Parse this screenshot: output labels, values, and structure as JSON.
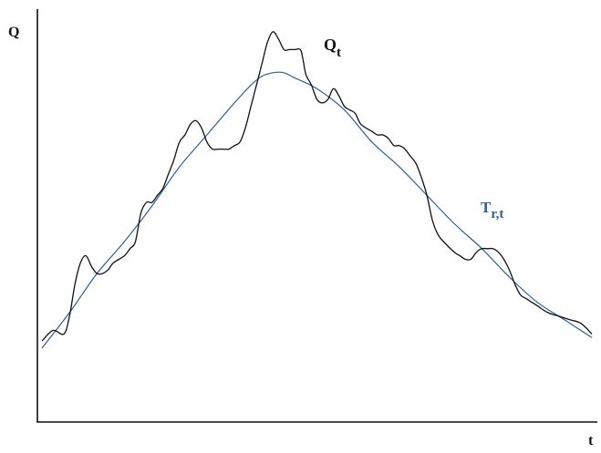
{
  "chart_data": {
    "type": "line",
    "ylabel": "Q",
    "xlabel": "t",
    "grid": false,
    "ticks": false,
    "xlim": [
      0,
      100
    ],
    "ylim": [
      0,
      100
    ],
    "series": [
      {
        "name": "Q",
        "name_sub": "t",
        "color": "#111111",
        "points": [
          [
            0,
            12
          ],
          [
            2,
            15
          ],
          [
            4,
            14
          ],
          [
            5,
            19
          ],
          [
            6,
            28
          ],
          [
            7,
            34
          ],
          [
            8,
            36
          ],
          [
            9,
            33
          ],
          [
            10,
            31
          ],
          [
            11,
            31
          ],
          [
            12,
            32
          ],
          [
            13,
            34
          ],
          [
            15,
            36
          ],
          [
            16,
            38
          ],
          [
            17,
            40
          ],
          [
            18,
            48
          ],
          [
            19,
            51
          ],
          [
            20,
            51
          ],
          [
            21,
            53
          ],
          [
            22,
            55
          ],
          [
            23,
            59
          ],
          [
            24,
            63
          ],
          [
            25,
            68
          ],
          [
            26,
            70
          ],
          [
            27,
            73
          ],
          [
            28,
            74
          ],
          [
            29,
            72
          ],
          [
            30,
            68
          ],
          [
            31,
            66
          ],
          [
            32,
            66
          ],
          [
            33,
            66
          ],
          [
            34,
            66
          ],
          [
            35,
            67
          ],
          [
            36,
            68
          ],
          [
            37,
            72
          ],
          [
            38,
            78
          ],
          [
            39,
            84
          ],
          [
            40,
            90
          ],
          [
            41,
            96
          ],
          [
            42,
            99
          ],
          [
            43,
            97
          ],
          [
            44,
            94
          ],
          [
            45,
            94
          ],
          [
            46,
            94
          ],
          [
            47,
            94
          ],
          [
            47.5,
            91
          ],
          [
            48,
            87
          ],
          [
            49,
            84
          ],
          [
            50,
            80
          ],
          [
            51,
            79
          ],
          [
            52,
            80
          ],
          [
            53,
            83
          ],
          [
            54,
            81
          ],
          [
            55,
            78
          ],
          [
            56,
            77
          ],
          [
            57,
            76
          ],
          [
            58,
            73
          ],
          [
            60,
            71
          ],
          [
            61,
            70
          ],
          [
            62,
            70
          ],
          [
            63,
            69
          ],
          [
            64,
            67
          ],
          [
            65,
            67
          ],
          [
            66,
            66
          ],
          [
            67,
            64
          ],
          [
            68,
            62
          ],
          [
            69,
            58
          ],
          [
            70,
            53
          ],
          [
            71,
            46
          ],
          [
            72,
            42
          ],
          [
            73,
            40
          ],
          [
            75,
            37
          ],
          [
            76,
            36
          ],
          [
            77,
            35
          ],
          [
            78,
            35
          ],
          [
            79,
            37
          ],
          [
            80,
            38
          ],
          [
            81,
            38
          ],
          [
            82,
            38
          ],
          [
            83,
            37
          ],
          [
            84,
            35
          ],
          [
            85,
            32
          ],
          [
            86,
            28
          ],
          [
            87,
            25
          ],
          [
            88,
            24
          ],
          [
            90,
            22
          ],
          [
            92,
            20
          ],
          [
            94,
            19
          ],
          [
            96,
            18
          ],
          [
            98,
            17
          ],
          [
            100,
            14
          ]
        ]
      },
      {
        "name": "T",
        "name_sub": "r,t",
        "color": "#2e5f97",
        "points": [
          [
            0,
            10
          ],
          [
            5,
            20
          ],
          [
            10,
            31
          ],
          [
            15,
            40
          ],
          [
            20,
            50
          ],
          [
            25,
            61
          ],
          [
            30,
            70
          ],
          [
            35,
            79
          ],
          [
            38,
            84
          ],
          [
            40,
            86.5
          ],
          [
            42,
            87.5
          ],
          [
            44,
            87.5
          ],
          [
            46,
            86
          ],
          [
            50,
            83
          ],
          [
            55,
            77
          ],
          [
            60,
            68
          ],
          [
            65,
            61
          ],
          [
            70,
            53
          ],
          [
            75,
            45
          ],
          [
            80,
            38
          ],
          [
            85,
            30
          ],
          [
            90,
            23
          ],
          [
            95,
            18
          ],
          [
            100,
            13
          ]
        ]
      }
    ]
  }
}
